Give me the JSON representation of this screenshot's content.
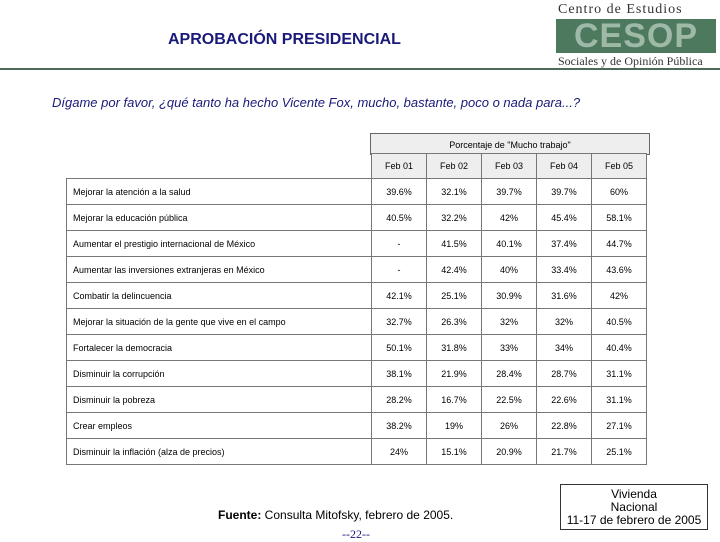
{
  "title": "APROBACIÓN PRESIDENCIAL",
  "logo": {
    "top": "Centro de Estudios",
    "mid": "CESOP",
    "bottom": "Sociales y de Opinión Pública"
  },
  "question": "Dígame por favor, ¿qué tanto ha hecho Vicente Fox, mucho, bastante, poco o nada para...?",
  "table_title": "Porcentaje de \"Mucho trabajo\"",
  "columns": [
    "Feb 01",
    "Feb 02",
    "Feb 03",
    "Feb 04",
    "Feb 05"
  ],
  "rows": [
    {
      "label": "Mejorar la atención a la salud",
      "values": [
        "39.6%",
        "32.1%",
        "39.7%",
        "39.7%",
        "60%"
      ]
    },
    {
      "label": "Mejorar la educación pública",
      "values": [
        "40.5%",
        "32.2%",
        "42%",
        "45.4%",
        "58.1%"
      ]
    },
    {
      "label": "Aumentar el prestigio internacional de México",
      "values": [
        "-",
        "41.5%",
        "40.1%",
        "37.4%",
        "44.7%"
      ]
    },
    {
      "label": "Aumentar las inversiones extranjeras en México",
      "values": [
        "-",
        "42.4%",
        "40%",
        "33.4%",
        "43.6%"
      ]
    },
    {
      "label": "Combatir la delincuencia",
      "values": [
        "42.1%",
        "25.1%",
        "30.9%",
        "31.6%",
        "42%"
      ]
    },
    {
      "label": "Mejorar la situación de la gente que vive en el campo",
      "values": [
        "32.7%",
        "26.3%",
        "32%",
        "32%",
        "40.5%"
      ]
    },
    {
      "label": "Fortalecer la democracia",
      "values": [
        "50.1%",
        "31.8%",
        "33%",
        "34%",
        "40.4%"
      ]
    },
    {
      "label": "Disminuir la corrupción",
      "values": [
        "38.1%",
        "21.9%",
        "28.4%",
        "28.7%",
        "31.1%"
      ]
    },
    {
      "label": "Disminuir la pobreza",
      "values": [
        "28.2%",
        "16.7%",
        "22.5%",
        "22.6%",
        "31.1%"
      ]
    },
    {
      "label": "Crear empleos",
      "values": [
        "38.2%",
        "19%",
        "26%",
        "22.8%",
        "27.1%"
      ]
    },
    {
      "label": "Disminuir la inflación (alza de precios)",
      "values": [
        "24%",
        "15.1%",
        "20.9%",
        "21.7%",
        "25.1%"
      ]
    }
  ],
  "footer": {
    "source_label": "Fuente:",
    "source_text": " Consulta Mitofsky, febrero de 2005.",
    "page": "--22--"
  },
  "box": {
    "line1": "Vivienda",
    "line2": "Nacional",
    "line3": "11-17 de febrero de 2005"
  }
}
